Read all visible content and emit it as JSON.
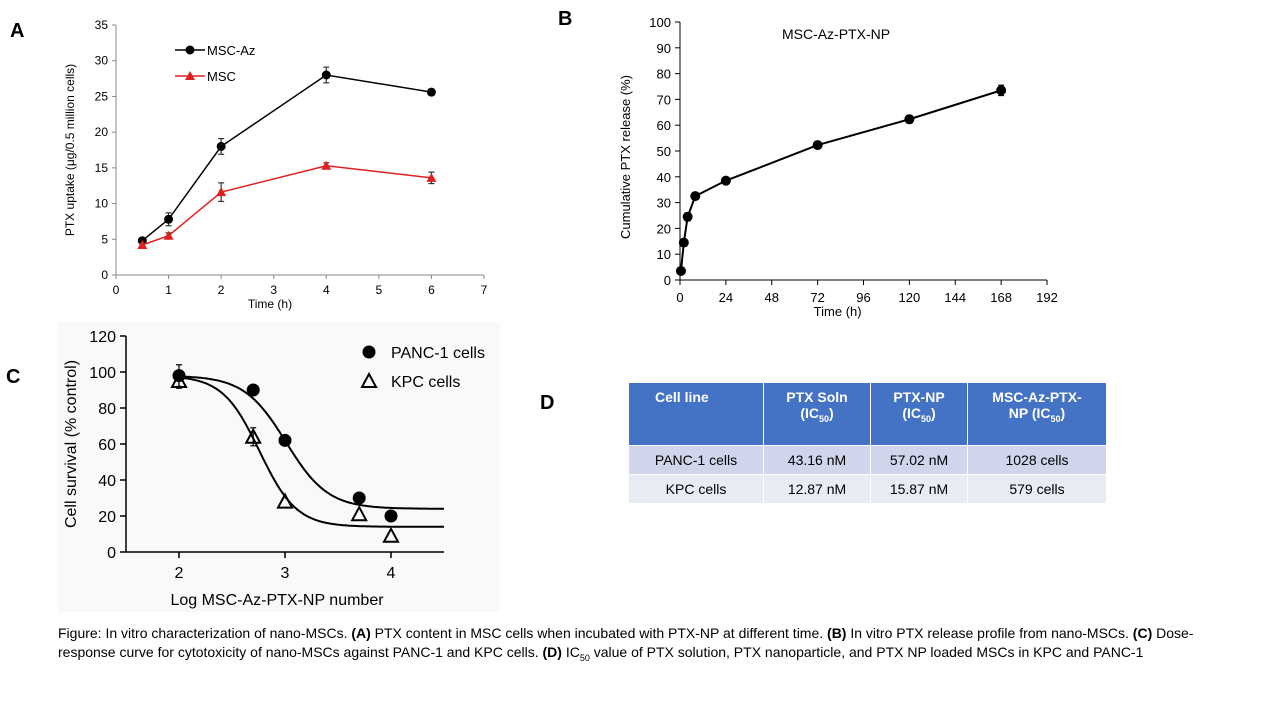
{
  "panels": {
    "a": "A",
    "b": "B",
    "c": "C",
    "d": "D"
  },
  "chart_data": [
    {
      "id": "A",
      "type": "line",
      "xlabel": "Time (h)",
      "ylabel": "PTX uptake (μg/0.5 million cells)",
      "xlim": [
        0,
        7
      ],
      "ylim": [
        0,
        35
      ],
      "xticks": [
        0,
        1,
        2,
        3,
        4,
        5,
        6,
        7
      ],
      "yticks": [
        0,
        5,
        10,
        15,
        20,
        25,
        30,
        35
      ],
      "legend": "top-left",
      "grid": false,
      "series": [
        {
          "name": "MSC-Az",
          "color": "#000000",
          "marker": "circle",
          "x": [
            0.5,
            1,
            2,
            4,
            6
          ],
          "y": [
            4.8,
            7.8,
            18.0,
            28.0,
            25.6
          ],
          "err": [
            0.3,
            0.9,
            1.1,
            1.1,
            0.4
          ]
        },
        {
          "name": "MSC",
          "color": "#e02020",
          "marker": "triangle",
          "x": [
            0.5,
            1,
            2,
            4,
            6
          ],
          "y": [
            4.2,
            5.5,
            11.6,
            15.3,
            13.6
          ],
          "err": [
            0.3,
            0.4,
            1.3,
            0.4,
            0.8
          ]
        }
      ]
    },
    {
      "id": "B",
      "type": "line",
      "title": "MSC-Az-PTX-NP",
      "xlabel": "Time (h)",
      "ylabel": "Cumulative  PTX release (%)",
      "xlim": [
        0,
        192
      ],
      "ylim": [
        0,
        100
      ],
      "xticks": [
        0,
        24,
        48,
        72,
        96,
        120,
        144,
        168,
        192
      ],
      "yticks": [
        0,
        10,
        20,
        30,
        40,
        50,
        60,
        70,
        80,
        90,
        100
      ],
      "grid": false,
      "series": [
        {
          "color": "#000000",
          "marker": "circle",
          "x": [
            0.5,
            2,
            4,
            8,
            24,
            72,
            120,
            168
          ],
          "y": [
            3.5,
            14.5,
            24.5,
            32.5,
            38.5,
            52.3,
            62.3,
            73.5
          ],
          "err": [
            0.5,
            1.0,
            1.5,
            1.2,
            1.0,
            1.0,
            1.5,
            2.0
          ]
        }
      ]
    },
    {
      "id": "C",
      "type": "scatter",
      "xlabel": "Log MSC-Az-PTX-NP number",
      "ylabel": "Cell survival (% control)",
      "xlim": [
        1.5,
        4.5
      ],
      "ylim": [
        0,
        120
      ],
      "xticks": [
        2,
        3,
        4
      ],
      "yticks": [
        0,
        20,
        40,
        60,
        80,
        100,
        120
      ],
      "legend": "top-right",
      "grid": false,
      "series": [
        {
          "name": "PANC-1 cells",
          "marker": "filled-circle",
          "x": [
            2.0,
            2.7,
            3.0,
            3.7,
            4.0
          ],
          "y": [
            98,
            90,
            62,
            30,
            20
          ],
          "err": [
            6,
            0,
            0,
            0,
            0
          ],
          "fit": {
            "top": 98,
            "bottom": 24,
            "logEC50": 3.01,
            "hill": 2.2
          }
        },
        {
          "name": "KPC cells",
          "marker": "open-triangle",
          "x": [
            2.0,
            2.7,
            3.0,
            3.7,
            4.0
          ],
          "y": [
            95,
            64,
            28,
            21,
            9
          ],
          "err": [
            4,
            5,
            0,
            0,
            0
          ],
          "fit": {
            "top": 98,
            "bottom": 14,
            "logEC50": 2.76,
            "hill": 2.5
          }
        }
      ]
    },
    {
      "id": "D",
      "type": "table",
      "columns": [
        "Cell line",
        "PTX Soln (IC50)",
        "PTX-NP (IC50)",
        "MSC-Az-PTX-NP (IC50)"
      ],
      "rows": [
        [
          "PANC-1 cells",
          "43.16 nM",
          "57.02 nM",
          "1028 cells"
        ],
        [
          "KPC cells",
          "12.87 nM",
          "15.87 nM",
          "579 cells"
        ]
      ]
    }
  ],
  "table": {
    "h1": "Cell line",
    "h2a": "PTX Soln",
    "h3a": "PTX-NP",
    "h4a": "MSC-Az-PTX-",
    "h4b": "NP",
    "ic": "IC",
    "ic_sub": "50",
    "rows": [
      {
        "c1": "PANC-1 cells",
        "c2": "43.16 nM",
        "c3": "57.02 nM",
        "c4": "1028 cells"
      },
      {
        "c1": "KPC cells",
        "c2": "12.87 nM",
        "c3": "15.87 nM",
        "c4": "579 cells"
      }
    ]
  },
  "caption": {
    "p0": "Figure: In vitro characterization of nano-MSCs. ",
    "a": "(A)",
    "p1": " PTX content in MSC cells when incubated with PTX-NP at different time. ",
    "b": "(B)",
    "p2": " In vitro PTX release profile from nano-MSCs. ",
    "c": "(C)",
    "p3": " Dose-response curve for cytotoxicity  of nano-MSCs against PANC-1 and KPC cells. ",
    "d": "(D)",
    "p4": " IC",
    "sub": "50",
    "p5": " value of PTX solution, PTX nanoparticle, and PTX NP loaded MSCs in KPC and PANC-1"
  }
}
